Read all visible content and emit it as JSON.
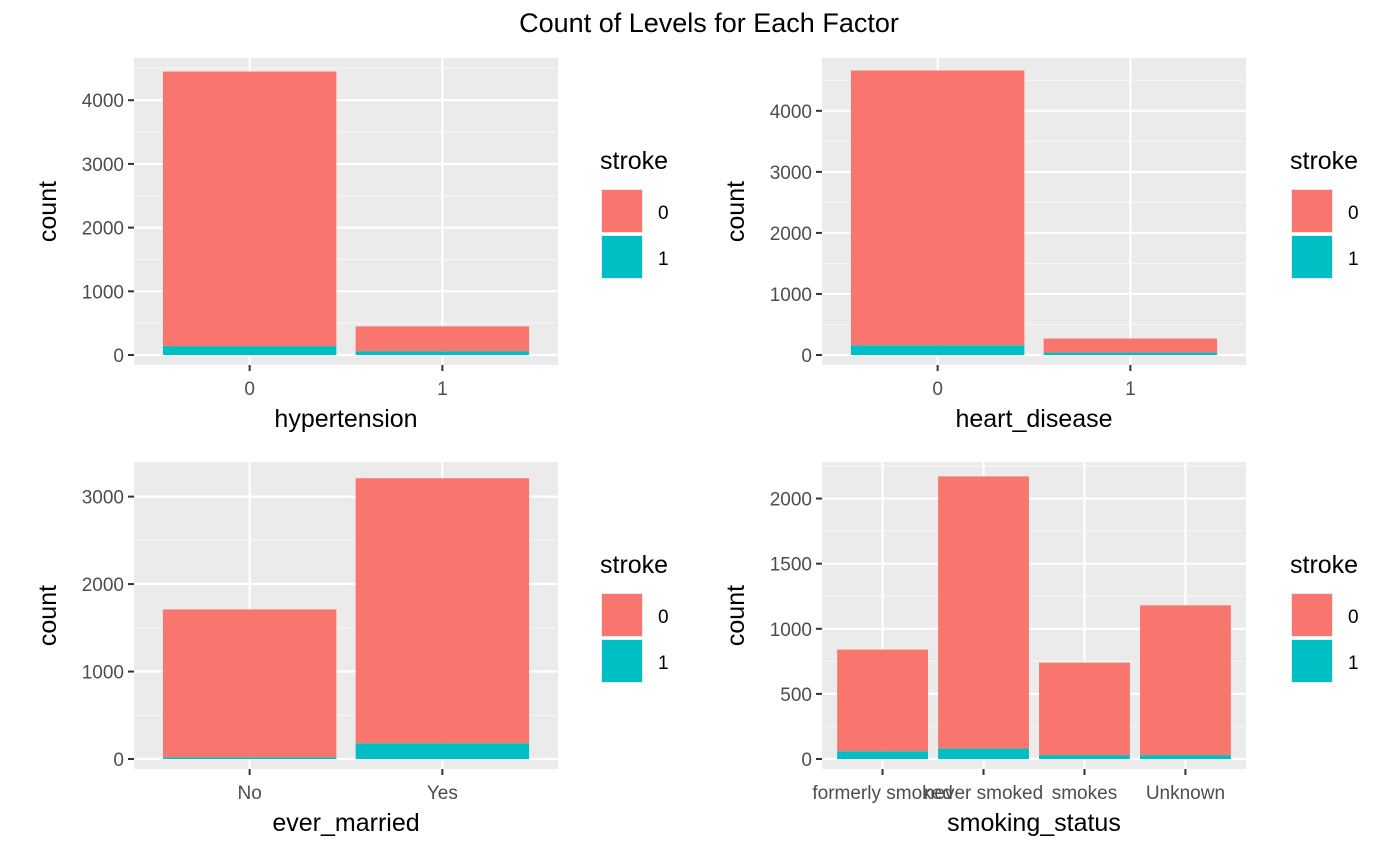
{
  "figure": {
    "title": "Count of Levels for Each Factor"
  },
  "colors": {
    "panel": "#EBEBEB",
    "grid_major": "#FFFFFF",
    "grid_minor": "#F5F5F5",
    "stroke_0": "#F8766D",
    "stroke_1": "#00BFC4"
  },
  "chart_data": [
    {
      "type": "bar",
      "stacked": true,
      "xlabel": "hypertension",
      "ylabel": "count",
      "categories": [
        "0",
        "1"
      ],
      "ylim": [
        0,
        4600
      ],
      "yticks": [
        0,
        1000,
        2000,
        3000,
        4000
      ],
      "series": [
        {
          "name": "0",
          "color": "#F8766D",
          "values": [
            4310,
            390
          ]
        },
        {
          "name": "1",
          "color": "#00BFC4",
          "values": [
            140,
            60
          ]
        }
      ],
      "legend": {
        "title": "stroke",
        "position": "right"
      },
      "grid": true
    },
    {
      "type": "bar",
      "stacked": true,
      "xlabel": "heart_disease",
      "ylabel": "count",
      "categories": [
        "0",
        "1"
      ],
      "ylim": [
        0,
        4800
      ],
      "yticks": [
        0,
        1000,
        2000,
        3000,
        4000
      ],
      "series": [
        {
          "name": "0",
          "color": "#F8766D",
          "values": [
            4500,
            230
          ]
        },
        {
          "name": "1",
          "color": "#00BFC4",
          "values": [
            160,
            40
          ]
        }
      ],
      "legend": {
        "title": "stroke",
        "position": "right"
      },
      "grid": true
    },
    {
      "type": "bar",
      "stacked": true,
      "xlabel": "ever_married",
      "ylabel": "count",
      "categories": [
        "No",
        "Yes"
      ],
      "ylim": [
        0,
        3350
      ],
      "yticks": [
        0,
        1000,
        2000,
        3000
      ],
      "series": [
        {
          "name": "0",
          "color": "#F8766D",
          "values": [
            1690,
            3030
          ]
        },
        {
          "name": "1",
          "color": "#00BFC4",
          "values": [
            20,
            180
          ]
        }
      ],
      "legend": {
        "title": "stroke",
        "position": "right"
      },
      "grid": true
    },
    {
      "type": "bar",
      "stacked": true,
      "xlabel": "smoking_status",
      "ylabel": "count",
      "categories": [
        "formerly smoked",
        "never smoked",
        "smokes",
        "Unknown"
      ],
      "ylim": [
        0,
        2250
      ],
      "yticks": [
        0,
        500,
        1000,
        1500,
        2000
      ],
      "series": [
        {
          "name": "0",
          "color": "#F8766D",
          "values": [
            780,
            2090,
            710,
            1150
          ]
        },
        {
          "name": "1",
          "color": "#00BFC4",
          "values": [
            60,
            80,
            30,
            30
          ]
        }
      ],
      "legend": {
        "title": "stroke",
        "position": "right"
      },
      "grid": true
    }
  ]
}
